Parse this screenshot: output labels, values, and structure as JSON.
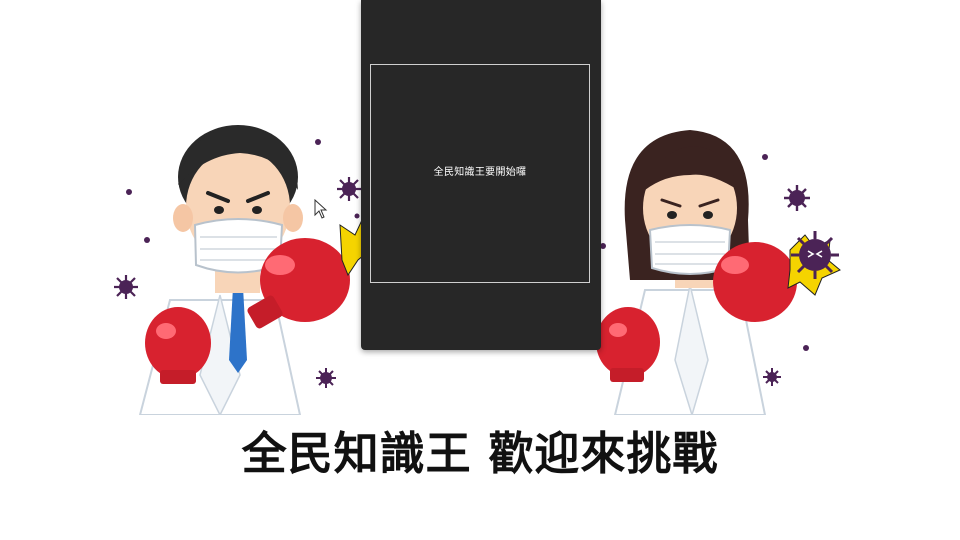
{
  "popup": {
    "message": "全民知識王要開始囉"
  },
  "banner": {
    "title": "全民知識王 歡迎來挑戰"
  },
  "colors": {
    "popup_background": "#272727",
    "glove": "#d8222f",
    "virus": "#4b2356",
    "impact": "#f5d400"
  },
  "icons": [
    "mouse-cursor-icon",
    "virus-icon",
    "boxing-glove-icon",
    "impact-burst-icon"
  ]
}
